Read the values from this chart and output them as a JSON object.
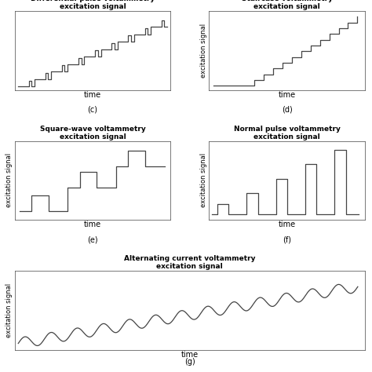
{
  "panels": {
    "c": {
      "title": "Differential-pulse voltammetry\nexcitation signal",
      "xlabel": "time",
      "label": "(c)",
      "ylabel": ""
    },
    "d": {
      "title": "Staircase voltammetry\nexcitation signal",
      "xlabel": "time",
      "label": "(d)",
      "ylabel": "excitation signal"
    },
    "e": {
      "title": "Square-wave voltammetry\nexcitation signal",
      "xlabel": "time",
      "label": "(e)",
      "ylabel": "excitation signal"
    },
    "f": {
      "title": "Normal pulse voltammetry\nexcitation signal",
      "xlabel": "time",
      "label": "(f)",
      "ylabel": "excitation signal"
    },
    "g": {
      "title": "Alternating current voltammetry\nexcitation signal",
      "xlabel": "time",
      "label": "(g)",
      "ylabel": "excitation signal"
    }
  },
  "line_color": "#444444",
  "bg_color": "#ffffff",
  "title_fontsize": 6.5,
  "label_fontsize": 7,
  "axis_label_fontsize": 6
}
